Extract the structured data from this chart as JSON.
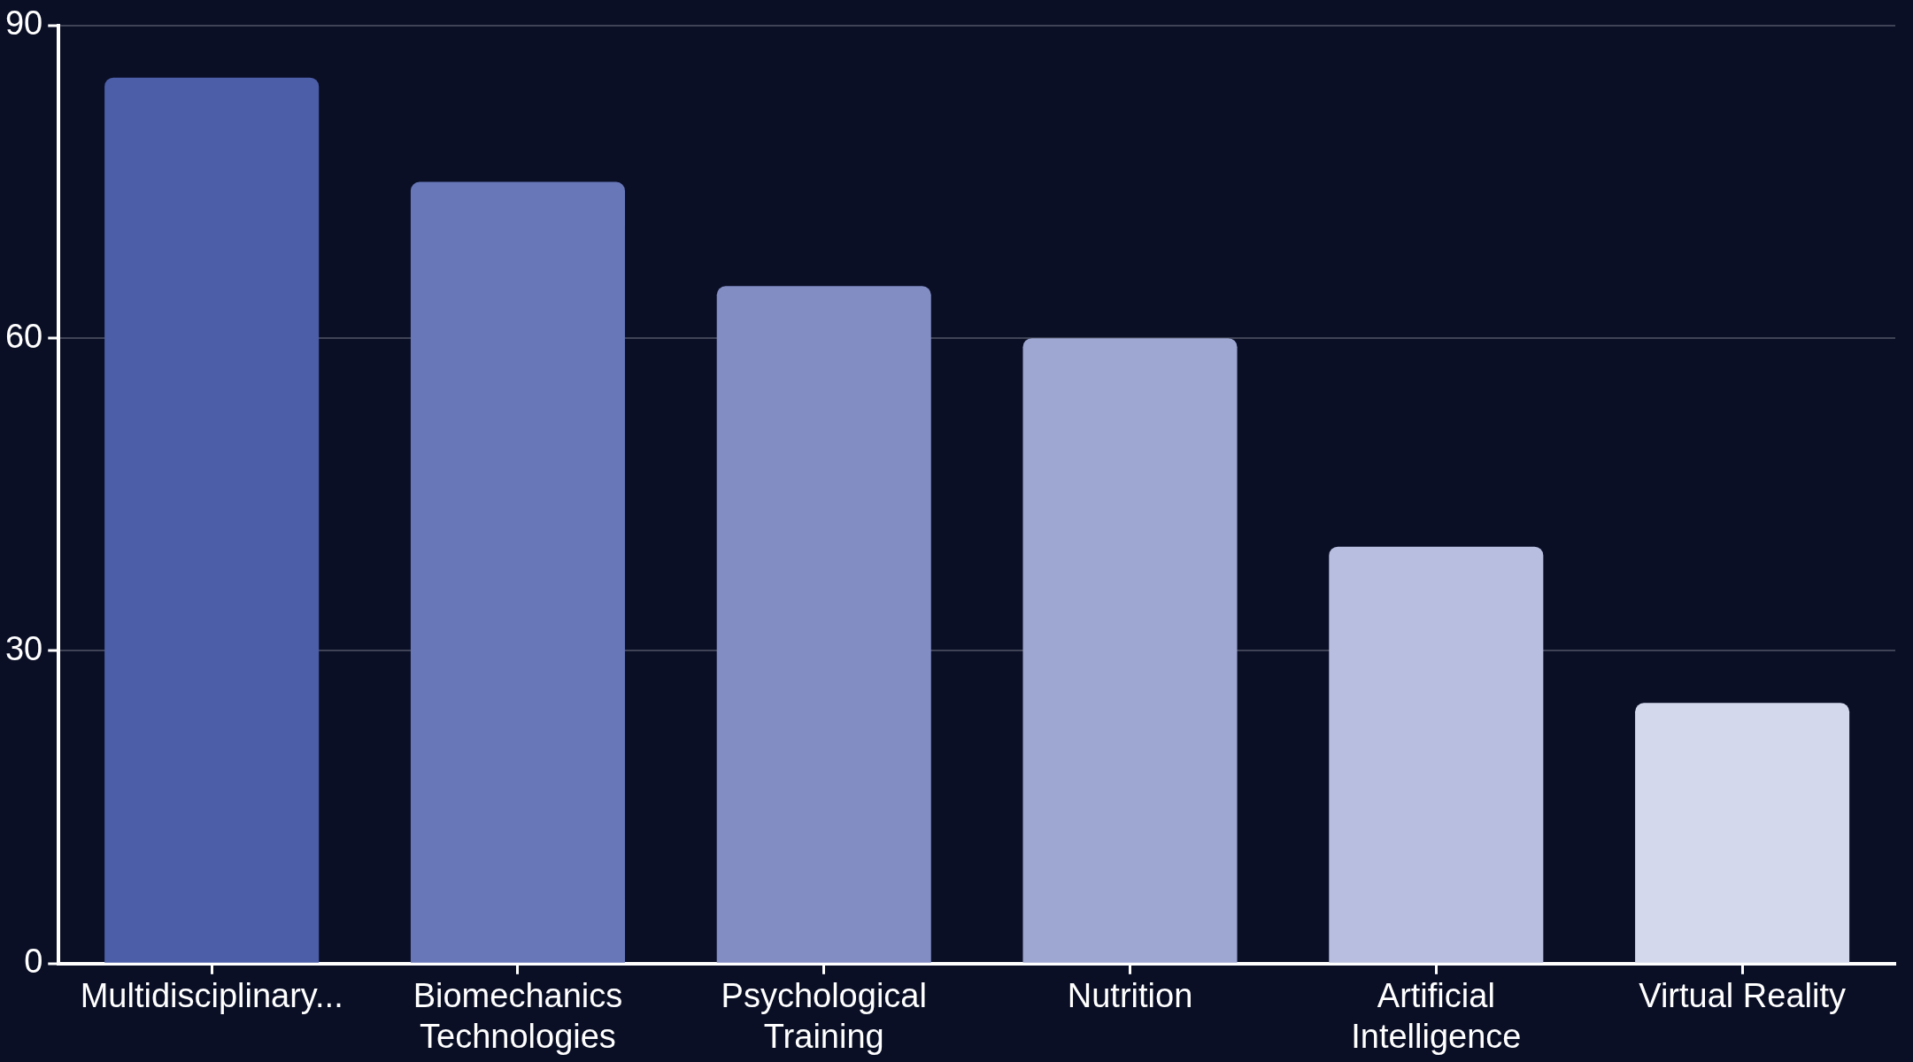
{
  "chart_data": {
    "type": "bar",
    "categories": [
      "Multidisciplinary...",
      "Biomechanics Technologies",
      "Psychological Training",
      "Nutrition",
      "Artificial Intelligence",
      "Virtual Reality"
    ],
    "values": [
      85,
      75,
      65,
      60,
      40,
      25
    ],
    "colors": [
      "#4c5ea8",
      "#6777b8",
      "#828dc4",
      "#9ea7d2",
      "#b8bedf",
      "#d4d8ec"
    ],
    "ylim": [
      0,
      90
    ],
    "yticks": [
      0,
      30,
      60,
      90
    ],
    "grid": "y",
    "legend": false
  }
}
